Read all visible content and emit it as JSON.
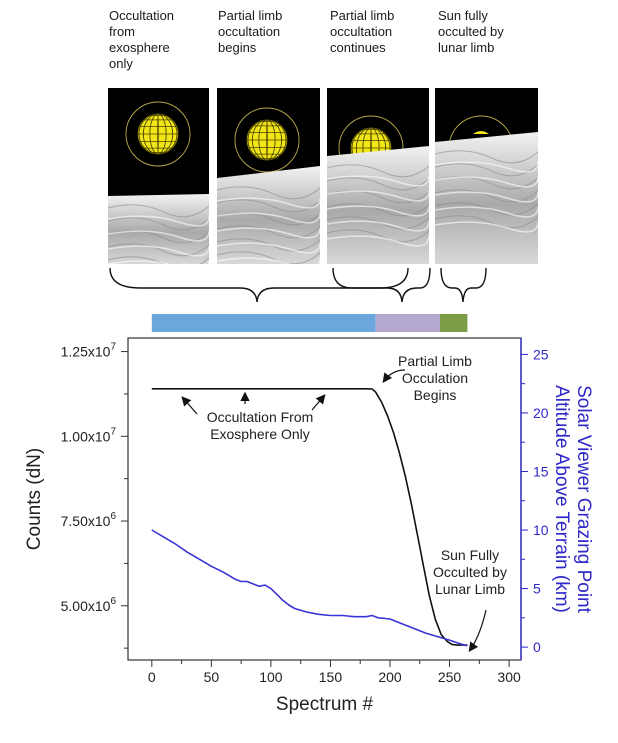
{
  "panels": [
    {
      "caption": "Occultation\nfrom\nexosphere\nonly",
      "sun": "full"
    },
    {
      "caption": "Partial limb\noccultation\nbegins",
      "sun": "touch"
    },
    {
      "caption": "Partial limb\noccultation\ncontinues",
      "sun": "partial"
    },
    {
      "caption": "Sun fully\nocculted by\nlunar limb",
      "sun": "hidden"
    }
  ],
  "phase_bar": [
    {
      "start": 0,
      "end": 188,
      "color": "#6ba7dc"
    },
    {
      "start": 188,
      "end": 242,
      "color": "#b6a9cf"
    },
    {
      "start": 242,
      "end": 265,
      "color": "#7a9c45"
    }
  ],
  "colors": {
    "counts_line": "#111111",
    "altitude_line": "#3a34d6",
    "right_axis": "#2f28c8"
  },
  "chart_data": {
    "type": "line",
    "xlabel": "Spectrum #",
    "ylabel": "Counts (dN)",
    "y2label": "Solar Viewer Grazing Point\nAltitude Above Terrain (km)",
    "xlim": [
      -20,
      310
    ],
    "ylim": [
      3400000.0,
      12900000.0
    ],
    "y2lim": [
      -1.1,
      26.4
    ],
    "xticks": [
      0,
      50,
      100,
      150,
      200,
      250,
      300
    ],
    "yticks": [
      5000000.0,
      7500000.0,
      10000000.0,
      12500000.0
    ],
    "ytick_labels": [
      "5.00x10^6",
      "7.50x10^6",
      "1.00x10^7",
      "1.25x10^7"
    ],
    "y2ticks": [
      0,
      5,
      10,
      15,
      20,
      25
    ],
    "series": [
      {
        "axis": "left",
        "x": [
          0,
          50,
          100,
          150,
          180,
          185,
          188,
          193,
          198,
          203,
          208,
          213,
          218,
          223,
          228,
          233,
          238,
          243,
          248,
          252,
          256,
          260,
          265
        ],
        "y": [
          11400000,
          11400000,
          11400000,
          11400000,
          11400000,
          11395000,
          11300000,
          11000000,
          10600000,
          10100000,
          9500000,
          8800000,
          8000000,
          7100000,
          6200000,
          5300000,
          4600000,
          4150000,
          3950000,
          3860000,
          3840000,
          3840000,
          3840000
        ]
      },
      {
        "axis": "right",
        "x": [
          0,
          10,
          20,
          30,
          40,
          50,
          60,
          70,
          75,
          80,
          85,
          90,
          95,
          100,
          105,
          110,
          115,
          120,
          130,
          140,
          150,
          160,
          170,
          180,
          185,
          190,
          200,
          210,
          220,
          230,
          240,
          250,
          260,
          265
        ],
        "y": [
          10,
          9.4,
          8.8,
          8.1,
          7.5,
          6.9,
          6.4,
          5.8,
          5.6,
          5.6,
          5.4,
          5.2,
          5.3,
          5.0,
          4.5,
          4.0,
          3.6,
          3.3,
          3.0,
          2.8,
          2.7,
          2.7,
          2.6,
          2.6,
          2.7,
          2.5,
          2.4,
          2.0,
          1.6,
          1.2,
          0.9,
          0.6,
          0.25,
          0.1
        ]
      }
    ],
    "annotations": [
      {
        "text": "Occultation From\nExosphere Only"
      },
      {
        "text": "Partial Limb\nOcculation\nBegins"
      },
      {
        "text": "Sun Fully\nOcculted by\nLunar Limb"
      }
    ]
  }
}
